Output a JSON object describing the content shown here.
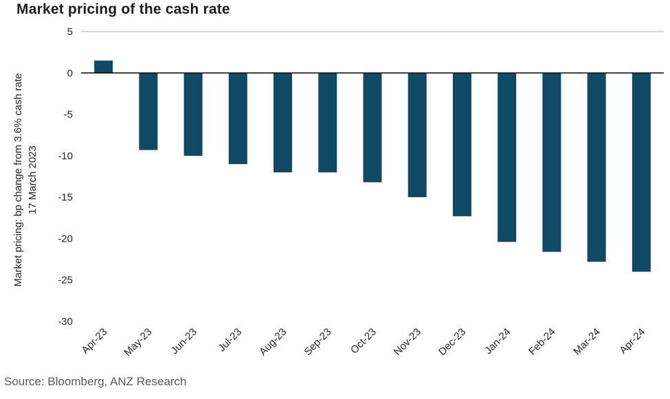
{
  "title": "Market pricing of the cash rate",
  "source": "Source: Bloomberg, ANZ Research",
  "chart_data": {
    "type": "bar",
    "title": "Market pricing of the cash rate",
    "categories": [
      "Apr-23",
      "May-23",
      "Jun-23",
      "Jul-23",
      "Aug-23",
      "Sep-23",
      "Oct-23",
      "Nov-23",
      "Dec-23",
      "Jan-24",
      "Feb-24",
      "Mar-24",
      "Apr-24"
    ],
    "values": [
      1.5,
      -9.3,
      -10,
      -11,
      -12,
      -12,
      -13.2,
      -15,
      -17.3,
      -20.4,
      -21.6,
      -22.8,
      -24
    ],
    "ylabel_line1": "Market pricing: bp change from 3.6% cash rate",
    "ylabel_line2": "17 March 2023",
    "xlabel": "",
    "ylim": [
      -30,
      5
    ],
    "yticks": [
      5,
      0,
      -5,
      -10,
      -15,
      -20,
      -25,
      -30
    ],
    "grid": false,
    "legend_position": "none",
    "bar_color": "#0e4a66",
    "zero_line_color": "#000000",
    "axis_line_color": "#bdbdbd",
    "source": "Source: Bloomberg, ANZ Research"
  }
}
